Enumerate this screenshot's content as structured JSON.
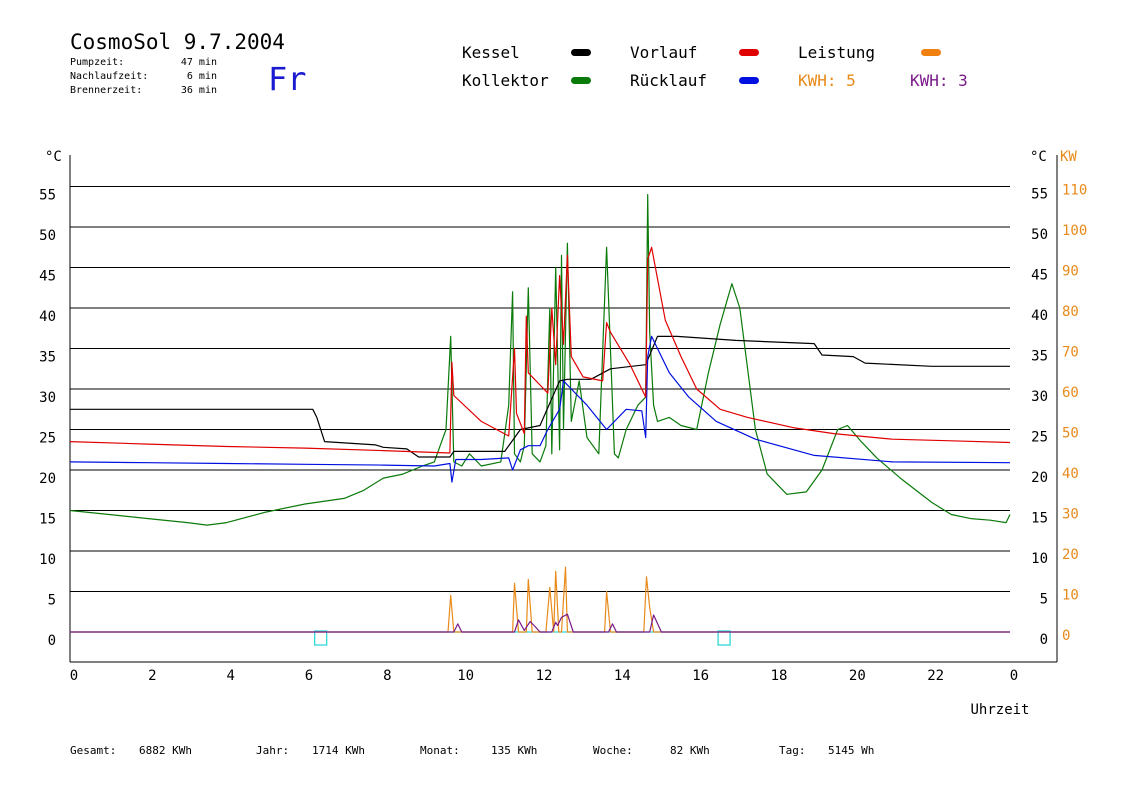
{
  "header": {
    "title": "CosmoSol 9.7.2004",
    "day": "Fr",
    "stats": [
      {
        "label": "Pumpzeit:",
        "value": "47 min"
      },
      {
        "label": "Nachlaufzeit:",
        "value": "6 min"
      },
      {
        "label": "Brennerzeit:",
        "value": "36 min"
      }
    ]
  },
  "legend": {
    "kessel": {
      "label": "Kessel",
      "color": "#000000"
    },
    "kollektor": {
      "label": "Kollektor",
      "color": "#0a7a0a"
    },
    "vorlauf": {
      "label": "Vorlauf",
      "color": "#e00000"
    },
    "ruecklauf": {
      "label": "Rücklauf",
      "color": "#0010e0"
    },
    "leistung": {
      "label": "Leistung",
      "color": "#f08010"
    },
    "kwh1": {
      "label": "KWH: 5",
      "color": "#e88a1a"
    },
    "kwh2": {
      "label": "KWH: 3",
      "color": "#7a1a8a"
    }
  },
  "footer": [
    {
      "label": "Gesamt:",
      "value": "6882 KWh"
    },
    {
      "label": "Jahr:",
      "value": "1714 KWh"
    },
    {
      "label": "Monat:",
      "value": "135 KWh"
    },
    {
      "label": "Woche:",
      "value": "82 KWh"
    },
    {
      "label": "Tag:",
      "value": "5145 Wh"
    }
  ],
  "chart_data": {
    "type": "line",
    "xlabel": "Uhrzeit",
    "ylabel_left": "°C",
    "ylabel_right_1": "°C",
    "ylabel_right_2": "KW",
    "xlim": [
      0,
      24
    ],
    "ylim": [
      -3.5,
      59
    ],
    "xticks": [
      "0",
      "2",
      "4",
      "6",
      "8",
      "10",
      "12",
      "14",
      "16",
      "18",
      "20",
      "22",
      "0"
    ],
    "yticks": [
      0,
      5,
      10,
      15,
      20,
      25,
      30,
      35,
      40,
      45,
      50,
      55
    ],
    "kw_ticks": [
      0,
      10,
      20,
      30,
      40,
      50,
      60,
      70,
      80,
      90,
      100,
      110
    ],
    "grid": true,
    "series": [
      {
        "name": "Kessel",
        "color": "#000000",
        "x": [
          0,
          6.2,
          6.3,
          6.5,
          7.8,
          8.0,
          8.6,
          8.9,
          9.7,
          9.8,
          11.1,
          11.5,
          12.0,
          12.5,
          12.7,
          13.3,
          13.8,
          14.7,
          15.0,
          15.5,
          17.0,
          19.0,
          19.2,
          20.0,
          20.3,
          22.0,
          24.0
        ],
        "y": [
          27.5,
          27.5,
          26.5,
          23.5,
          23.1,
          22.8,
          22.6,
          21.6,
          21.6,
          22.3,
          22.3,
          25.0,
          25.5,
          31.0,
          31.2,
          31.2,
          32.5,
          33.0,
          36.5,
          36.5,
          36.0,
          35.6,
          34.2,
          34.0,
          33.2,
          32.8,
          32.8
        ]
      },
      {
        "name": "Vorlauf",
        "color": "#e00000",
        "x": [
          0,
          2,
          4,
          6,
          8,
          9.7,
          9.75,
          9.8,
          10.5,
          11.2,
          11.35,
          11.4,
          11.6,
          11.65,
          11.7,
          12.0,
          12.2,
          12.3,
          12.4,
          12.5,
          12.6,
          12.7,
          12.8,
          13.1,
          13.6,
          13.7,
          13.8,
          14.3,
          14.7,
          14.75,
          14.85,
          15.2,
          15.6,
          16.0,
          16.6,
          17.3,
          18.5,
          19.5,
          21.0,
          22.5,
          24.0
        ],
        "y": [
          23.5,
          23.2,
          22.9,
          22.7,
          22.4,
          22.1,
          33.3,
          29.2,
          26.0,
          24.2,
          35.0,
          27.0,
          24.5,
          39.0,
          32.0,
          30.5,
          29.5,
          40.0,
          33.0,
          44.0,
          35.5,
          46.5,
          34.0,
          31.5,
          31.0,
          38.2,
          37.0,
          33.0,
          29.0,
          46.0,
          47.5,
          38.5,
          34.0,
          30.0,
          27.5,
          26.5,
          25.2,
          24.5,
          23.8,
          23.6,
          23.4
        ]
      },
      {
        "name": "Rücklauf",
        "color": "#0010e0",
        "x": [
          0,
          2,
          4,
          6,
          8,
          9.3,
          9.7,
          9.75,
          9.85,
          10.5,
          11.2,
          11.3,
          11.5,
          11.7,
          12.0,
          12.2,
          12.5,
          12.6,
          12.8,
          13.2,
          13.7,
          14.2,
          14.6,
          14.7,
          14.75,
          14.85,
          15.3,
          15.8,
          16.5,
          17.5,
          19.0,
          21.0,
          24.0
        ],
        "y": [
          21.0,
          20.9,
          20.8,
          20.7,
          20.6,
          20.5,
          20.8,
          18.5,
          21.3,
          21.3,
          21.5,
          20.0,
          22.5,
          23.0,
          23.0,
          25.0,
          27.5,
          31.0,
          30.0,
          28.0,
          25.0,
          27.5,
          27.3,
          24.0,
          34.0,
          36.5,
          32.0,
          29.0,
          26.0,
          23.8,
          21.8,
          21.0,
          20.9
        ]
      },
      {
        "name": "Kollektor",
        "color": "#0a7a0a",
        "x": [
          0,
          1,
          2,
          3,
          3.5,
          4,
          5,
          6,
          7,
          7.5,
          8,
          8.5,
          9,
          9.3,
          9.6,
          9.72,
          9.8,
          10.0,
          10.2,
          10.5,
          11.0,
          11.2,
          11.3,
          11.35,
          11.5,
          11.6,
          11.7,
          11.8,
          12.0,
          12.15,
          12.25,
          12.3,
          12.4,
          12.5,
          12.55,
          12.6,
          12.7,
          12.8,
          13.0,
          13.2,
          13.5,
          13.7,
          13.9,
          14.0,
          14.2,
          14.5,
          14.7,
          14.75,
          14.8,
          14.9,
          15.0,
          15.3,
          15.6,
          16.0,
          16.3,
          16.6,
          16.9,
          17.1,
          17.5,
          17.8,
          18.3,
          18.8,
          19.2,
          19.6,
          19.85,
          20.2,
          20.6,
          21.2,
          22.0,
          22.5,
          23.0,
          23.5,
          23.9,
          24.0
        ],
        "y": [
          15.0,
          14.5,
          14.0,
          13.5,
          13.2,
          13.5,
          14.8,
          15.8,
          16.5,
          17.5,
          19.0,
          19.5,
          20.5,
          21.0,
          25.0,
          36.5,
          21.0,
          20.5,
          22.0,
          20.5,
          21.0,
          28.0,
          42.0,
          22.0,
          21.0,
          23.0,
          42.5,
          22.0,
          21.0,
          23.0,
          40.0,
          22.0,
          45.0,
          22.5,
          46.5,
          25.0,
          48.0,
          26.0,
          31.0,
          24.0,
          22.0,
          47.5,
          22.0,
          21.5,
          25.0,
          28.0,
          29.0,
          54.0,
          37.0,
          28.0,
          26.0,
          26.5,
          25.5,
          25.0,
          32.0,
          38.0,
          43.0,
          40.0,
          25.0,
          19.5,
          17.0,
          17.3,
          20.0,
          25.0,
          25.5,
          23.5,
          21.5,
          19.0,
          16.0,
          14.5,
          14.0,
          13.8,
          13.5,
          14.5
        ]
      },
      {
        "name": "Leistung",
        "color": "#e88a1a",
        "x": [
          0,
          9.65,
          9.72,
          9.8,
          11.3,
          11.35,
          11.45,
          11.65,
          11.7,
          11.8,
          12.15,
          12.25,
          12.35,
          12.4,
          12.48,
          12.55,
          12.65,
          12.7,
          12.8,
          13.65,
          13.7,
          13.8,
          14.65,
          14.72,
          14.8,
          14.9,
          24.0
        ],
        "y": [
          0,
          0,
          4.5,
          0,
          0,
          6.0,
          0,
          0,
          6.5,
          0,
          0,
          5.5,
          0,
          7.5,
          0,
          0,
          8.0,
          0,
          0,
          0,
          5.0,
          0,
          0,
          6.8,
          3.0,
          0,
          0
        ]
      },
      {
        "name": "KWH: 3",
        "color": "#7a1a8a",
        "x": [
          0,
          9.8,
          9.9,
          10.0,
          11.35,
          11.45,
          11.6,
          11.75,
          11.85,
          12.0,
          12.3,
          12.4,
          12.45,
          12.55,
          12.7,
          12.85,
          13.75,
          13.85,
          13.95,
          14.8,
          14.9,
          15.1,
          24.0
        ],
        "y": [
          0,
          0,
          1.0,
          0,
          0,
          1.5,
          0.2,
          1.3,
          0.8,
          0,
          0,
          1.2,
          0.8,
          1.8,
          2.2,
          0,
          0,
          1.0,
          0,
          0,
          2.1,
          0,
          0
        ]
      }
    ]
  }
}
